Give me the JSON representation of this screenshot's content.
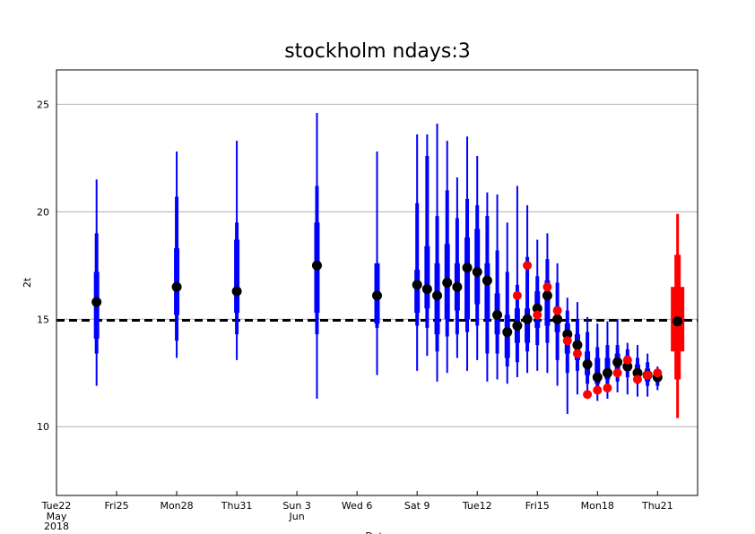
{
  "chart_data": {
    "type": "boxplot",
    "title": "stockholm ndays:3",
    "y_label": "2t",
    "x_label": "Date",
    "xlim": [
      0,
      32
    ],
    "ylim": [
      6.8,
      26.6
    ],
    "yticks": [
      10,
      15,
      20,
      25
    ],
    "grid": true,
    "xticks": [
      {
        "value": 0,
        "label": "Tue22"
      },
      {
        "value": 3,
        "label": "Fri25"
      },
      {
        "value": 6,
        "label": "Mon28"
      },
      {
        "value": 9,
        "label": "Thu31"
      },
      {
        "value": 12,
        "label": "Sun 3",
        "color": "#ff0000"
      },
      {
        "value": 15,
        "label": "Wed 6"
      },
      {
        "value": 18,
        "label": "Sat 9"
      },
      {
        "value": 21,
        "label": "Tue12"
      },
      {
        "value": 24,
        "label": "Fri15"
      },
      {
        "value": 27,
        "label": "Mon18"
      },
      {
        "value": 30,
        "label": "Thu21"
      }
    ],
    "x_sublabels": [
      {
        "value": 0,
        "lines": [
          "May",
          "2018"
        ]
      },
      {
        "value": 12,
        "lines": [
          "Jun"
        ]
      }
    ],
    "reference_line": {
      "value": 14.95,
      "color": "#000000"
    },
    "boxes": {
      "color": "#0000ff",
      "dot_color": "#000000",
      "x": [
        2,
        6,
        9,
        13,
        16,
        18,
        18.5,
        19,
        19.5,
        20,
        20.5,
        21,
        21.5,
        22,
        22.5,
        23,
        23.5,
        24,
        24.5,
        25,
        25.5,
        26,
        26.5,
        27,
        27.5,
        28,
        28.5,
        29,
        29.5,
        30
      ],
      "min": [
        11.9,
        13.2,
        13.1,
        11.3,
        12.4,
        12.6,
        13.3,
        12.1,
        12.5,
        13.2,
        12.6,
        13.1,
        12.1,
        12.2,
        12.0,
        12.3,
        12.5,
        12.6,
        12.5,
        11.9,
        10.6,
        11.5,
        11.6,
        11.2,
        11.3,
        11.6,
        11.5,
        11.4,
        11.4,
        11.7
      ],
      "p10": [
        13.4,
        14.0,
        14.3,
        14.3,
        14.6,
        14.7,
        14.6,
        13.5,
        14.2,
        14.3,
        14.4,
        14.7,
        13.4,
        13.4,
        12.8,
        13.0,
        13.5,
        13.8,
        13.9,
        13.1,
        12.5,
        12.6,
        12.0,
        11.7,
        11.8,
        12.1,
        12.3,
        12.0,
        11.9,
        11.9
      ],
      "p25": [
        14.1,
        15.2,
        15.3,
        15.3,
        14.8,
        15.3,
        15.5,
        14.3,
        15.0,
        15.4,
        15.0,
        15.7,
        15.0,
        14.3,
        13.2,
        13.9,
        13.9,
        14.6,
        14.7,
        14.4,
        13.4,
        13.1,
        12.4,
        12.0,
        12.2,
        12.4,
        12.6,
        12.3,
        12.1,
        12.1
      ],
      "p75": [
        17.2,
        18.3,
        18.7,
        19.5,
        17.6,
        17.3,
        18.4,
        17.6,
        18.5,
        17.6,
        18.8,
        19.2,
        17.6,
        16.2,
        15.2,
        15.5,
        15.5,
        16.3,
        16.8,
        15.6,
        14.8,
        14.3,
        13.5,
        13.2,
        13.2,
        13.4,
        13.3,
        12.9,
        12.7,
        12.5
      ],
      "p90": [
        19.0,
        20.7,
        19.5,
        21.2,
        17.6,
        20.4,
        22.6,
        19.8,
        21.0,
        19.7,
        20.6,
        20.3,
        19.8,
        18.2,
        17.2,
        16.6,
        17.9,
        17.0,
        17.8,
        16.7,
        15.4,
        15.0,
        14.4,
        13.7,
        13.8,
        13.8,
        13.6,
        13.2,
        13.0,
        12.6
      ],
      "max": [
        21.5,
        22.8,
        23.3,
        24.6,
        22.8,
        23.6,
        23.6,
        24.1,
        23.3,
        21.6,
        23.5,
        22.6,
        20.9,
        20.8,
        19.5,
        21.2,
        20.3,
        18.7,
        19.0,
        17.6,
        16.0,
        15.8,
        15.1,
        14.8,
        14.9,
        15.0,
        13.9,
        13.8,
        13.4,
        12.8
      ],
      "dot": [
        15.8,
        16.5,
        16.3,
        17.5,
        16.1,
        16.6,
        16.4,
        16.1,
        16.7,
        16.5,
        17.4,
        17.2,
        16.8,
        15.2,
        14.4,
        14.7,
        15.0,
        15.5,
        16.1,
        15.0,
        14.3,
        13.8,
        12.9,
        12.3,
        12.5,
        13.0,
        12.8,
        12.5,
        12.4,
        12.3
      ]
    },
    "climate": {
      "color": "#ff0000",
      "dot_color": "#000000",
      "x": [
        31
      ],
      "min": [
        10.4
      ],
      "p10": [
        12.2
      ],
      "p25": [
        13.5
      ],
      "p75": [
        16.5
      ],
      "p90": [
        18.0
      ],
      "max": [
        19.9
      ],
      "dot": [
        14.9
      ]
    },
    "observations": {
      "color": "#ff0000",
      "x": [
        23,
        23.5,
        24,
        24.5,
        25,
        25.5,
        26,
        26.5,
        27,
        27.5,
        28,
        28.5,
        29,
        29.5,
        30
      ],
      "values": [
        16.1,
        17.5,
        15.2,
        16.5,
        15.4,
        14.0,
        13.4,
        11.5,
        11.7,
        11.8,
        12.5,
        13.1,
        12.2,
        12.4,
        12.5
      ]
    }
  }
}
